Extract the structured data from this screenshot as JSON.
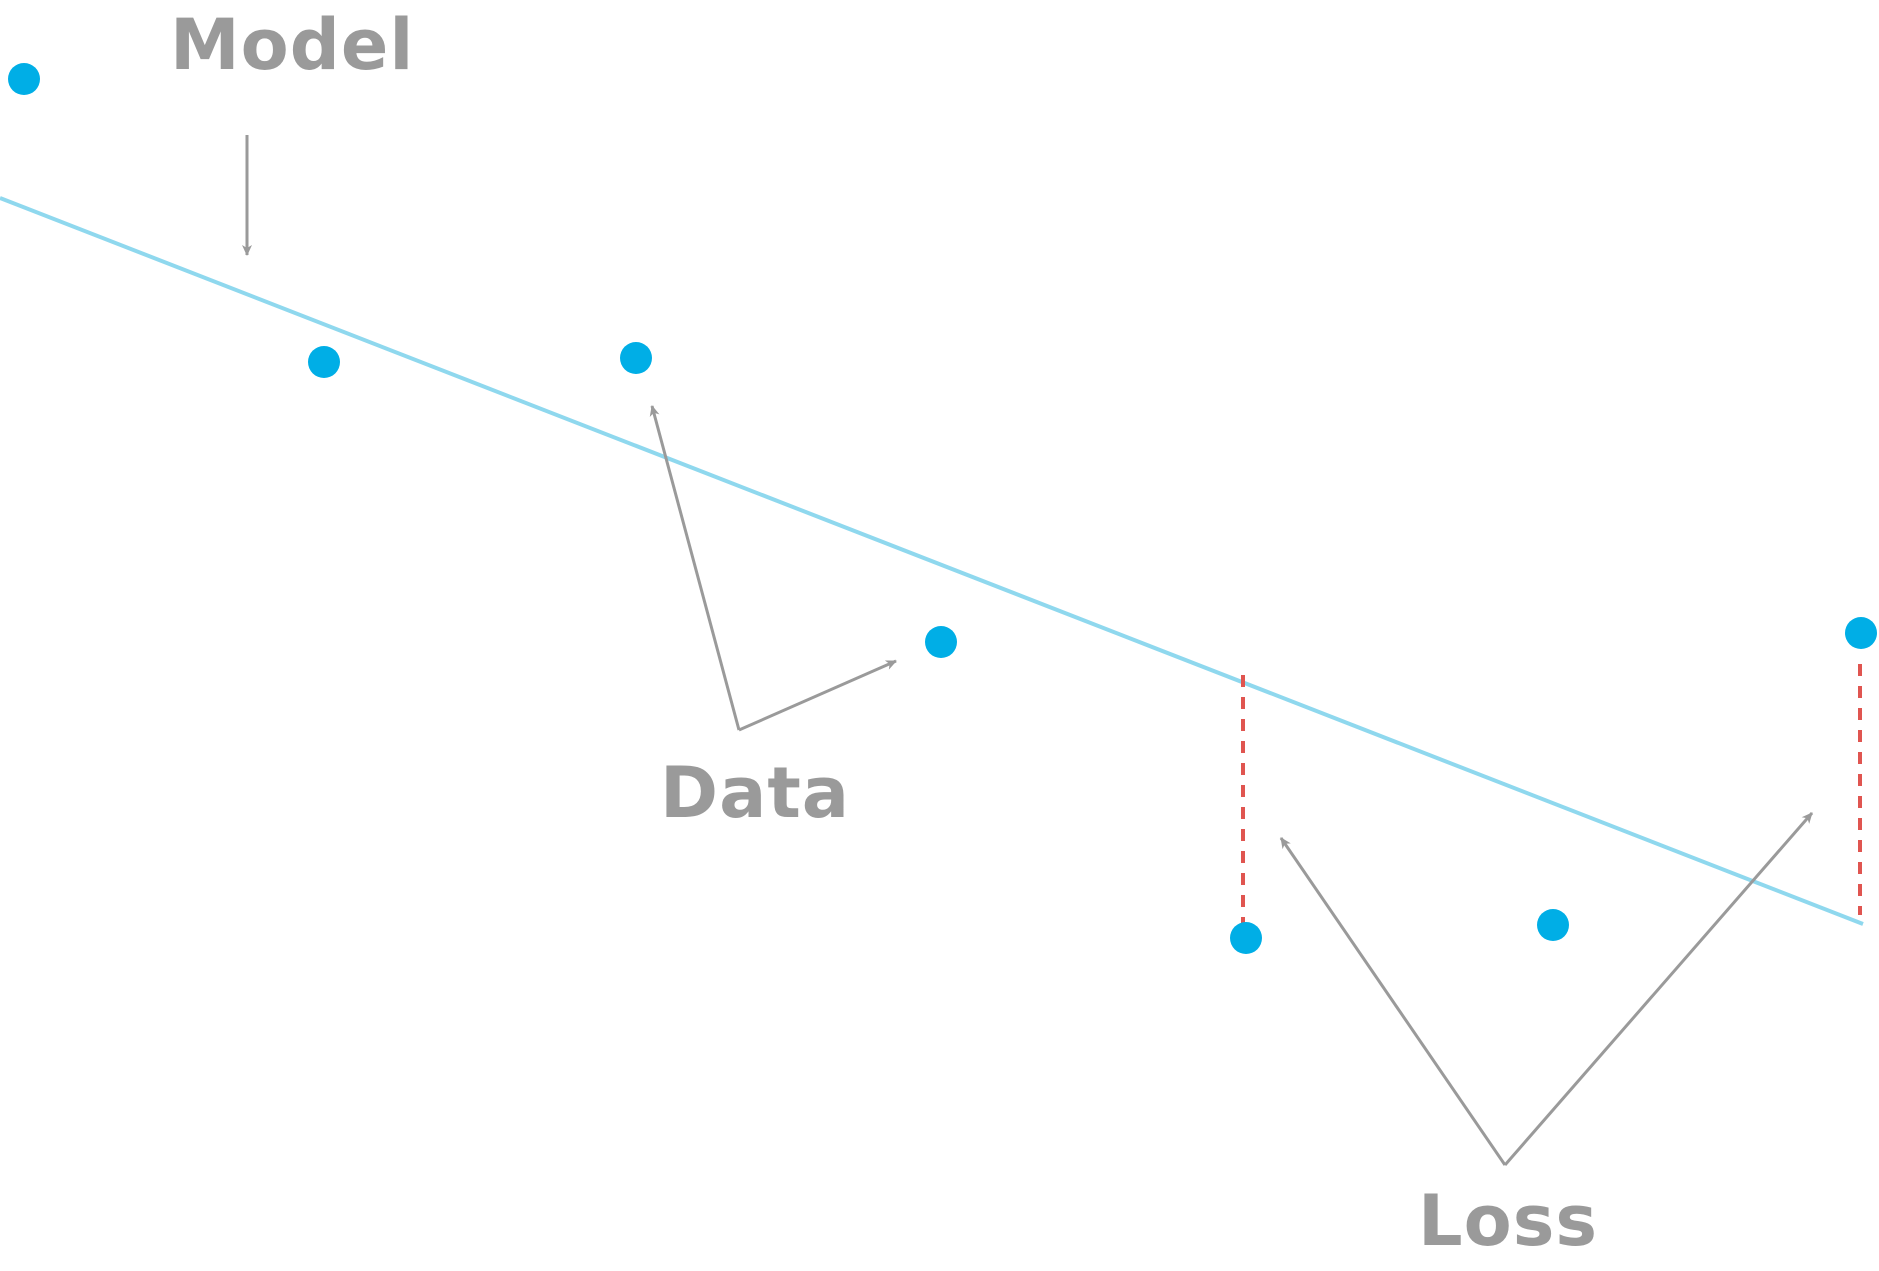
{
  "labels": {
    "model": "Model",
    "data": "Data",
    "loss": "Loss"
  },
  "colors": {
    "points": "#00aee6",
    "model_line": "#8fd8ee",
    "arrows": "#9a9a9a",
    "loss_dash": "#e05550",
    "labels": "#9a9a9a"
  }
}
